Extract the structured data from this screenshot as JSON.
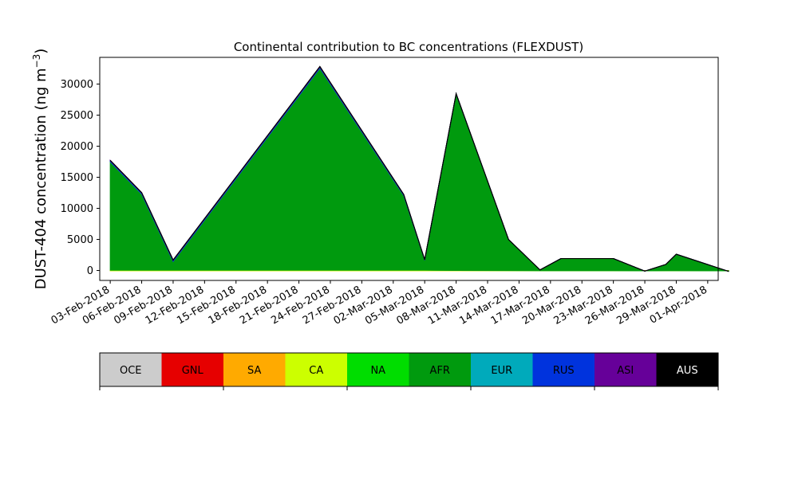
{
  "chart_data": {
    "type": "area",
    "title": "Continental contribution to BC concentrations (FLEXDUST)",
    "ylabel": "DUST-404 concentration (ng m",
    "ylabel_sup": "−3",
    "ylabel_close": ")",
    "xlabel": "",
    "ylim": [
      -1600,
      34300
    ],
    "yticks": [
      0,
      5000,
      10000,
      15000,
      20000,
      25000,
      30000
    ],
    "ytick_labels": [
      "0",
      "5000",
      "10000",
      "15000",
      "20000",
      "25000",
      "30000"
    ],
    "xlim": [
      "2018-02-02",
      "2018-04-02"
    ],
    "xticks": [
      "2018-02-03",
      "2018-02-06",
      "2018-02-09",
      "2018-02-12",
      "2018-02-15",
      "2018-02-18",
      "2018-02-21",
      "2018-02-24",
      "2018-02-27",
      "2018-03-02",
      "2018-03-05",
      "2018-03-08",
      "2018-03-11",
      "2018-03-14",
      "2018-03-17",
      "2018-03-20",
      "2018-03-23",
      "2018-03-26",
      "2018-03-29",
      "2018-04-01"
    ],
    "xtick_labels": [
      "03-Feb-2018",
      "06-Feb-2018",
      "09-Feb-2018",
      "12-Feb-2018",
      "15-Feb-2018",
      "18-Feb-2018",
      "21-Feb-2018",
      "24-Feb-2018",
      "27-Feb-2018",
      "02-Mar-2018",
      "05-Mar-2018",
      "08-Mar-2018",
      "11-Mar-2018",
      "14-Mar-2018",
      "17-Mar-2018",
      "20-Mar-2018",
      "23-Mar-2018",
      "26-Mar-2018",
      "29-Mar-2018",
      "01-Apr-2018"
    ],
    "x": [
      "2018-02-03",
      "2018-02-06",
      "2018-02-09",
      "2018-02-23",
      "2018-03-03",
      "2018-03-05",
      "2018-03-08",
      "2018-03-13",
      "2018-03-16",
      "2018-03-18",
      "2018-03-21",
      "2018-03-23",
      "2018-03-26",
      "2018-03-28",
      "2018-03-29",
      "2018-04-03"
    ],
    "series": [
      {
        "name": "OCE",
        "color": "#cccccc",
        "values": [
          0,
          0,
          0,
          0,
          0,
          0,
          0,
          0,
          0,
          0,
          0,
          0,
          0,
          0,
          0,
          0
        ]
      },
      {
        "name": "GNL",
        "color": "#e60000",
        "values": [
          0,
          0,
          0,
          0,
          0,
          0,
          0,
          0,
          0,
          0,
          0,
          0,
          0,
          0,
          0,
          0
        ]
      },
      {
        "name": "SA",
        "color": "#ffaa00",
        "values": [
          -50,
          -50,
          -50,
          -50,
          -50,
          -50,
          -50,
          -50,
          -50,
          -50,
          -50,
          -50,
          -50,
          -50,
          -50,
          -50
        ]
      },
      {
        "name": "CA",
        "color": "#ccff00",
        "values": [
          100,
          100,
          100,
          100,
          100,
          100,
          50,
          30,
          20,
          20,
          20,
          20,
          0,
          20,
          20,
          0
        ]
      },
      {
        "name": "NA",
        "color": "#00dd00",
        "values": [
          0,
          0,
          0,
          0,
          0,
          0,
          0,
          0,
          0,
          0,
          0,
          0,
          0,
          0,
          0,
          0
        ]
      },
      {
        "name": "AFR",
        "color": "#009a0e",
        "values": [
          17450,
          12250,
          1400,
          32500,
          12000,
          1600,
          28400,
          5000,
          120,
          1950,
          1950,
          1950,
          -50,
          1000,
          2650,
          -100
        ]
      },
      {
        "name": "EUR",
        "color": "#00aabb",
        "values": [
          20,
          20,
          20,
          20,
          20,
          20,
          20,
          0,
          0,
          0,
          0,
          0,
          0,
          0,
          0,
          0
        ]
      },
      {
        "name": "RUS",
        "color": "#0033dd",
        "values": [
          130,
          130,
          130,
          150,
          100,
          40,
          20,
          0,
          0,
          0,
          0,
          0,
          0,
          0,
          0,
          0
        ]
      },
      {
        "name": "ASI",
        "color": "#660099",
        "values": [
          80,
          80,
          80,
          100,
          60,
          20,
          10,
          0,
          0,
          0,
          0,
          0,
          0,
          0,
          0,
          0
        ]
      },
      {
        "name": "AUS",
        "color": "#000000",
        "values": [
          0,
          0,
          0,
          0,
          0,
          0,
          0,
          0,
          0,
          0,
          0,
          0,
          0,
          0,
          0,
          0
        ]
      }
    ]
  }
}
